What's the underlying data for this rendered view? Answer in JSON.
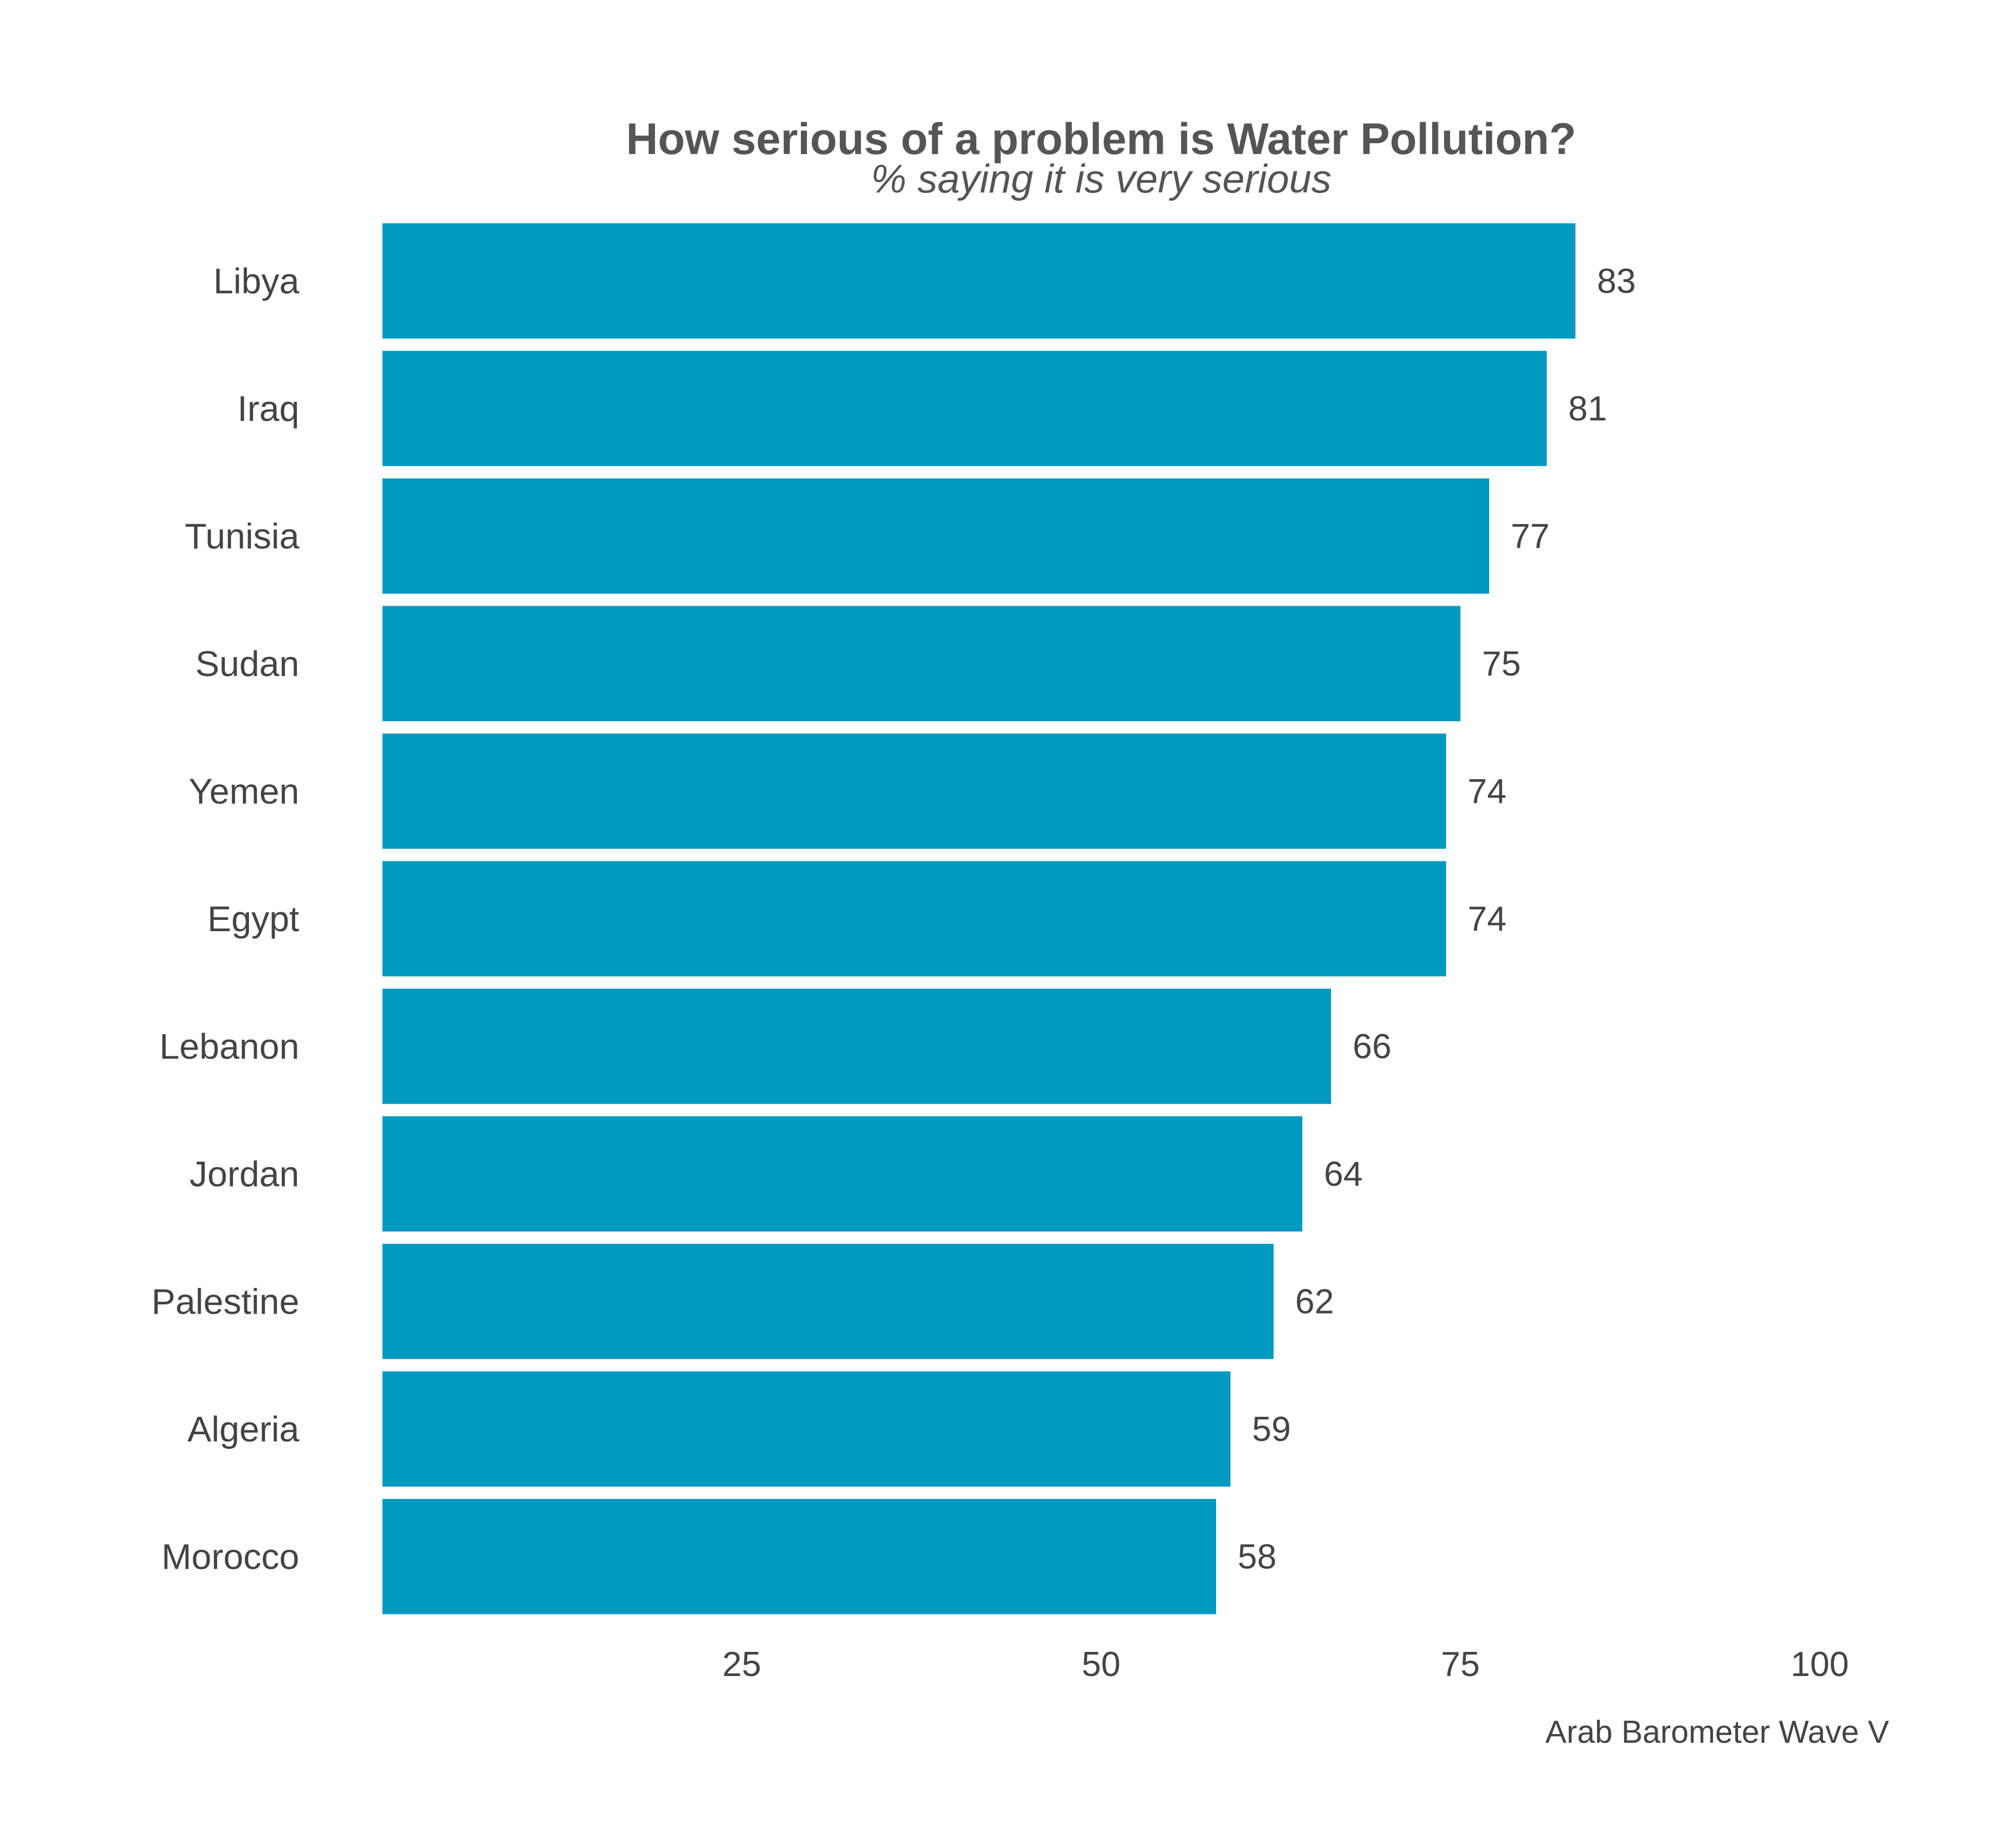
{
  "chart_data": {
    "type": "bar",
    "orientation": "horizontal",
    "title": "How serious of a problem is Water Pollution?",
    "subtitle": "% saying it is very serious",
    "caption": "Arab Barometer Wave V",
    "categories": [
      "Libya",
      "Iraq",
      "Tunisia",
      "Sudan",
      "Yemen",
      "Egypt",
      "Lebanon",
      "Jordan",
      "Palestine",
      "Algeria",
      "Morocco"
    ],
    "values": [
      83,
      81,
      77,
      75,
      74,
      74,
      66,
      64,
      62,
      59,
      58
    ],
    "value_labels": [
      "83",
      "81",
      "77",
      "75",
      "74",
      "74",
      "66",
      "64",
      "62",
      "59",
      "58"
    ],
    "xlim": [
      0,
      100
    ],
    "xticks": [
      25,
      50,
      75,
      100
    ],
    "xtick_labels": [
      "25",
      "50",
      "75",
      "100"
    ],
    "grid": false,
    "legend": "none",
    "bar_color": "#0099c0"
  }
}
